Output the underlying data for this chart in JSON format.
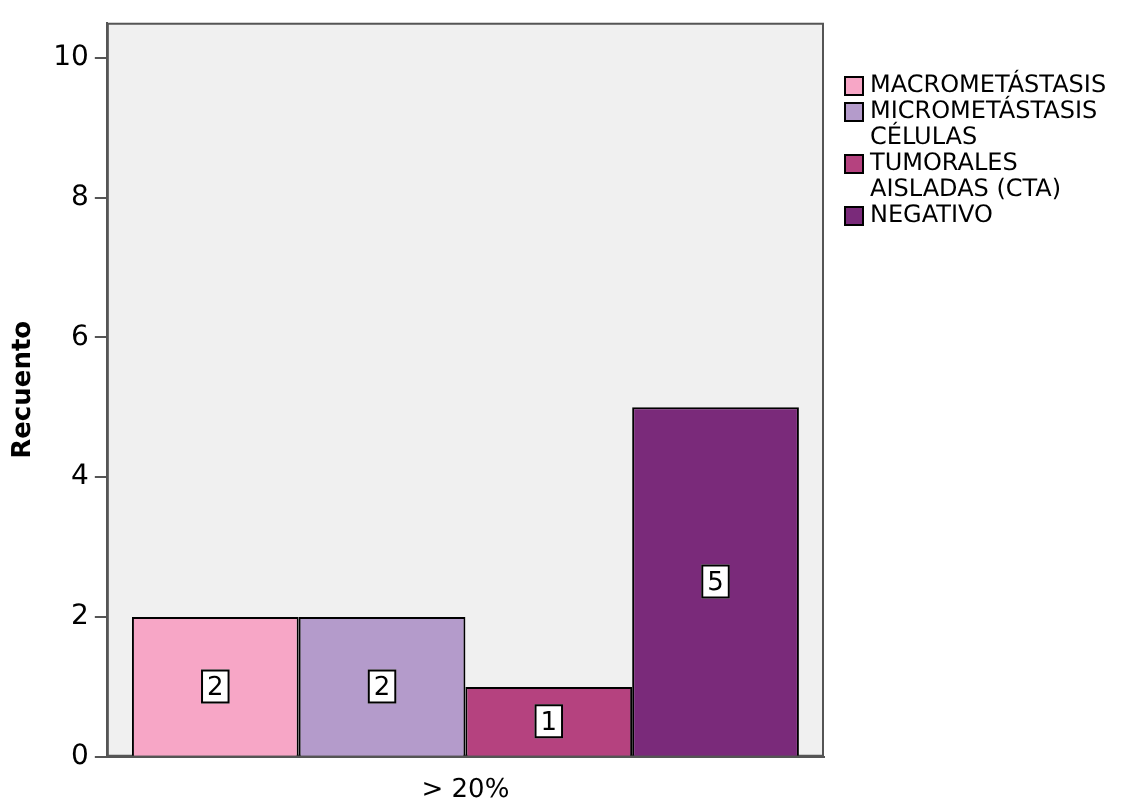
{
  "chart_data": {
    "type": "bar",
    "ylabel": "Recuento",
    "categories": [
      "> 20%"
    ],
    "series": [
      {
        "name": "MACROMETÁSTASIS",
        "color": "#f7a6c6",
        "values": [
          2
        ]
      },
      {
        "name": "MICROMETÁSTASIS",
        "color": "#b49bcb",
        "values": [
          2
        ]
      },
      {
        "name": "CÉLULAS TUMORALES AISLADAS (CTA)",
        "color": "#b5427f",
        "values": [
          1
        ]
      },
      {
        "name": "NEGATIVO",
        "color": "#7a2a7a",
        "values": [
          5
        ]
      }
    ],
    "ylim": [
      0,
      10.5
    ],
    "yticks": [
      0,
      2,
      4,
      6,
      8,
      10
    ],
    "grid": false,
    "legend": "top right",
    "data_labels": true
  }
}
